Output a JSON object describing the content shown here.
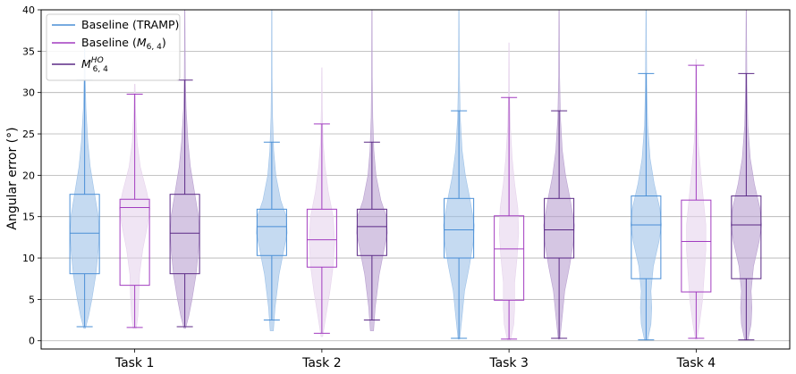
{
  "chart_data": {
    "type": "violin-box",
    "title": "",
    "ylabel": "Angular error (°)",
    "xlabel": "",
    "ylim": [
      -1,
      40
    ],
    "yticks": [
      0,
      5,
      10,
      15,
      20,
      25,
      30,
      35,
      40
    ],
    "grid": "horizontal",
    "legend_position": "top-left",
    "categories": [
      "Task 1",
      "Task 2",
      "Task 3",
      "Task 4"
    ],
    "series": [
      {
        "name": "Baseline (TRAMP)",
        "legend_main": "Baseline (TRAMP)",
        "legend_sub": "",
        "legend_sup": "",
        "legend_tail": "",
        "color": "#4a8fd6",
        "fill": "#9ec2e8",
        "boxes": [
          {
            "whisker_low": 1.7,
            "q1": 8.1,
            "median": 13.0,
            "q3": 17.7,
            "whisker_high": 31.5
          },
          {
            "whisker_low": 2.5,
            "q1": 10.3,
            "median": 13.8,
            "q3": 15.9,
            "whisker_high": 24.0
          },
          {
            "whisker_low": 0.3,
            "q1": 10.0,
            "median": 13.4,
            "q3": 17.2,
            "whisker_high": 27.8
          },
          {
            "whisker_low": 0.1,
            "q1": 7.5,
            "median": 14.0,
            "q3": 17.5,
            "whisker_high": 32.3
          }
        ]
      },
      {
        "name": "Baseline (M6,4)",
        "legend_main": "Baseline (",
        "legend_sub": "M",
        "legend_sup": "",
        "legend_tail": "6, 4)",
        "color": "#a23cc0",
        "fill": "#e6d3ec",
        "boxes": [
          {
            "whisker_low": 1.6,
            "q1": 6.7,
            "median": 16.1,
            "q3": 17.1,
            "whisker_high": 29.8
          },
          {
            "whisker_low": 0.9,
            "q1": 8.9,
            "median": 12.2,
            "q3": 15.9,
            "whisker_high": 26.2
          },
          {
            "whisker_low": 0.2,
            "q1": 4.9,
            "median": 11.1,
            "q3": 15.1,
            "whisker_high": 29.4
          },
          {
            "whisker_low": 0.3,
            "q1": 5.9,
            "median": 12.0,
            "q3": 17.0,
            "whisker_high": 33.3
          }
        ]
      },
      {
        "name": "M HO 6,4",
        "legend_main": "",
        "legend_sub": "M",
        "legend_sup": "HO",
        "legend_tail": "6, 4",
        "color": "#5b2a86",
        "fill": "#b9a0d0",
        "boxes": [
          {
            "whisker_low": 1.7,
            "q1": 8.1,
            "median": 13.0,
            "q3": 17.7,
            "whisker_high": 31.5
          },
          {
            "whisker_low": 2.5,
            "q1": 10.3,
            "median": 13.8,
            "q3": 15.9,
            "whisker_high": 24.0
          },
          {
            "whisker_low": 0.3,
            "q1": 10.0,
            "median": 13.4,
            "q3": 17.2,
            "whisker_high": 27.8
          },
          {
            "whisker_low": 0.1,
            "q1": 7.5,
            "median": 14.0,
            "q3": 17.5,
            "whisker_high": 32.3
          }
        ]
      }
    ],
    "violins": [
      [
        [
          [
            1.5,
            0.05
          ],
          [
            3,
            0.25
          ],
          [
            5,
            0.45
          ],
          [
            8,
            0.7
          ],
          [
            11,
            0.85
          ],
          [
            13,
            0.9
          ],
          [
            15,
            0.85
          ],
          [
            18,
            0.6
          ],
          [
            21,
            0.35
          ],
          [
            24,
            0.2
          ],
          [
            28,
            0.08
          ],
          [
            32,
            0.03
          ],
          [
            36,
            0.01
          ]
        ],
        [
          [
            1.5,
            0.1
          ],
          [
            3,
            0.2
          ],
          [
            5,
            0.25
          ],
          [
            8,
            0.3
          ],
          [
            11,
            0.5
          ],
          [
            14,
            0.8
          ],
          [
            16,
            0.95
          ],
          [
            18,
            0.75
          ],
          [
            21,
            0.35
          ],
          [
            24,
            0.15
          ],
          [
            28,
            0.05
          ],
          [
            31,
            0.02
          ]
        ],
        [
          [
            1.5,
            0.05
          ],
          [
            3,
            0.25
          ],
          [
            5,
            0.45
          ],
          [
            8,
            0.7
          ],
          [
            11,
            0.85
          ],
          [
            13,
            0.9
          ],
          [
            15,
            0.85
          ],
          [
            18,
            0.6
          ],
          [
            21,
            0.35
          ],
          [
            24,
            0.2
          ],
          [
            28,
            0.08
          ],
          [
            32,
            0.03
          ],
          [
            40,
            0.01
          ]
        ]
      ],
      [
        [
          [
            1.2,
            0.1
          ],
          [
            4,
            0.2
          ],
          [
            8,
            0.45
          ],
          [
            11,
            0.75
          ],
          [
            13,
            0.95
          ],
          [
            15,
            0.9
          ],
          [
            17,
            0.55
          ],
          [
            20,
            0.25
          ],
          [
            23,
            0.12
          ],
          [
            27,
            0.05
          ],
          [
            32,
            0.02
          ],
          [
            40,
            0.01
          ]
        ],
        [
          [
            0.5,
            0.05
          ],
          [
            3,
            0.25
          ],
          [
            6,
            0.5
          ],
          [
            9,
            0.7
          ],
          [
            12,
            0.8
          ],
          [
            15,
            0.7
          ],
          [
            18,
            0.4
          ],
          [
            21,
            0.2
          ],
          [
            24,
            0.08
          ],
          [
            28,
            0.03
          ],
          [
            33,
            0.01
          ]
        ],
        [
          [
            1.2,
            0.1
          ],
          [
            4,
            0.2
          ],
          [
            8,
            0.45
          ],
          [
            11,
            0.75
          ],
          [
            13,
            0.95
          ],
          [
            15,
            0.9
          ],
          [
            17,
            0.55
          ],
          [
            20,
            0.25
          ],
          [
            23,
            0.12
          ],
          [
            27,
            0.05
          ],
          [
            32,
            0.02
          ],
          [
            40,
            0.01
          ]
        ]
      ],
      [
        [
          [
            0.2,
            0.05
          ],
          [
            3,
            0.2
          ],
          [
            6,
            0.35
          ],
          [
            9,
            0.65
          ],
          [
            12,
            0.9
          ],
          [
            14,
            0.95
          ],
          [
            17,
            0.7
          ],
          [
            20,
            0.4
          ],
          [
            23,
            0.2
          ],
          [
            27,
            0.08
          ],
          [
            32,
            0.03
          ],
          [
            40,
            0.01
          ]
        ],
        [
          [
            0.1,
            0.1
          ],
          [
            2,
            0.3
          ],
          [
            4,
            0.35
          ],
          [
            7,
            0.35
          ],
          [
            10,
            0.5
          ],
          [
            13,
            0.6
          ],
          [
            16,
            0.55
          ],
          [
            19,
            0.35
          ],
          [
            22,
            0.2
          ],
          [
            26,
            0.08
          ],
          [
            30,
            0.03
          ],
          [
            36,
            0.01
          ]
        ],
        [
          [
            0.2,
            0.05
          ],
          [
            3,
            0.2
          ],
          [
            6,
            0.35
          ],
          [
            9,
            0.65
          ],
          [
            12,
            0.9
          ],
          [
            14,
            0.95
          ],
          [
            17,
            0.7
          ],
          [
            20,
            0.4
          ],
          [
            23,
            0.2
          ],
          [
            27,
            0.08
          ],
          [
            32,
            0.03
          ],
          [
            40,
            0.01
          ]
        ]
      ],
      [
        [
          [
            0.1,
            0.1
          ],
          [
            2,
            0.3
          ],
          [
            4,
            0.35
          ],
          [
            6,
            0.3
          ],
          [
            9,
            0.45
          ],
          [
            12,
            0.8
          ],
          [
            14,
            0.95
          ],
          [
            16,
            0.85
          ],
          [
            19,
            0.5
          ],
          [
            22,
            0.25
          ],
          [
            26,
            0.1
          ],
          [
            31,
            0.04
          ],
          [
            40,
            0.01
          ]
        ],
        [
          [
            0.2,
            0.05
          ],
          [
            2,
            0.2
          ],
          [
            5,
            0.4
          ],
          [
            8,
            0.5
          ],
          [
            11,
            0.6
          ],
          [
            14,
            0.6
          ],
          [
            17,
            0.45
          ],
          [
            20,
            0.3
          ],
          [
            24,
            0.12
          ],
          [
            28,
            0.05
          ],
          [
            34,
            0.02
          ]
        ],
        [
          [
            0.1,
            0.1
          ],
          [
            2,
            0.3
          ],
          [
            4,
            0.35
          ],
          [
            6,
            0.3
          ],
          [
            9,
            0.45
          ],
          [
            12,
            0.8
          ],
          [
            14,
            0.95
          ],
          [
            16,
            0.85
          ],
          [
            19,
            0.5
          ],
          [
            22,
            0.25
          ],
          [
            26,
            0.1
          ],
          [
            31,
            0.04
          ],
          [
            40,
            0.01
          ]
        ]
      ]
    ]
  }
}
